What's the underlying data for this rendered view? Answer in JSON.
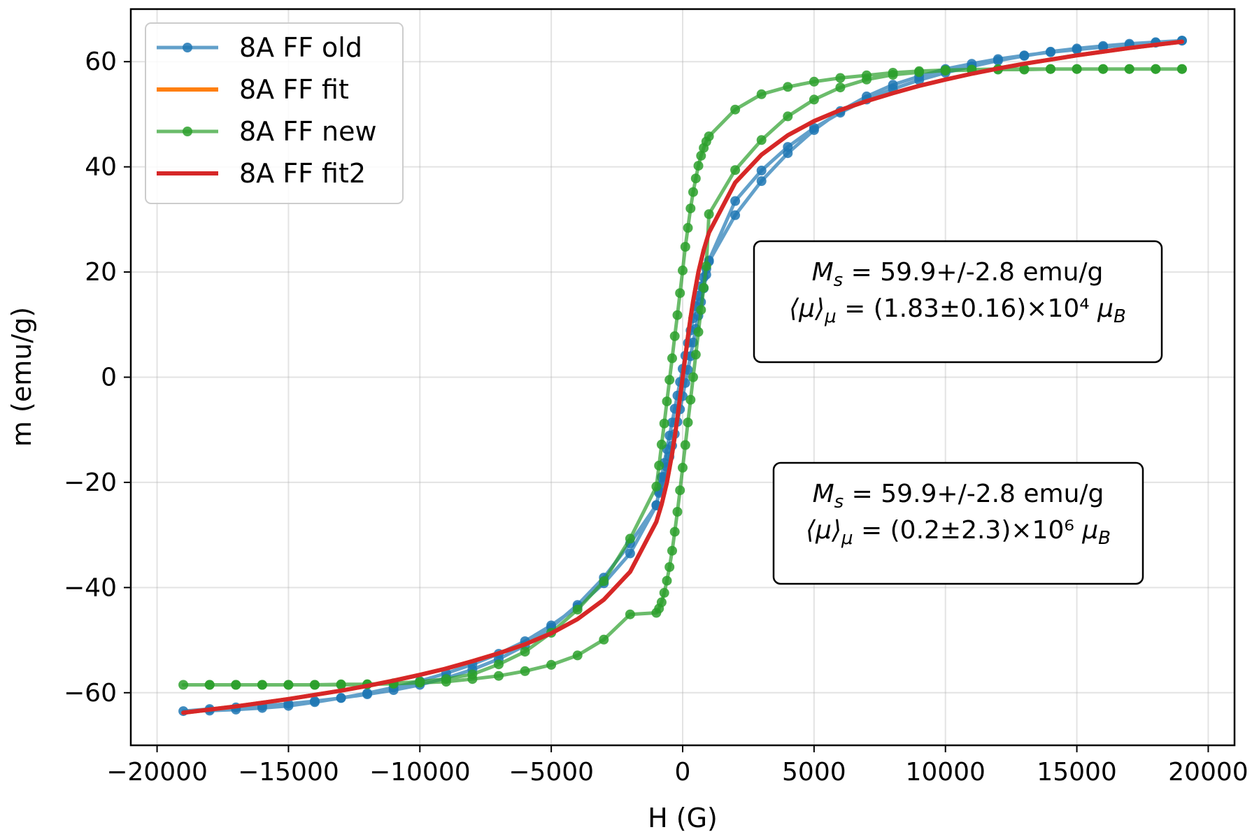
{
  "chart_data": {
    "type": "line",
    "xlabel": "H (G)",
    "ylabel": "m (emu/g)",
    "xlim": [
      -21000,
      21000
    ],
    "ylim": [
      -70,
      70
    ],
    "xticks": [
      -20000,
      -15000,
      -10000,
      -5000,
      0,
      5000,
      10000,
      15000,
      20000
    ],
    "xtick_labels": [
      "−20000",
      "−15000",
      "−10000",
      "−5000",
      "0",
      "5000",
      "10000",
      "15000",
      "20000"
    ],
    "yticks": [
      -60,
      -40,
      -20,
      0,
      20,
      40,
      60
    ],
    "ytick_labels": [
      "−60",
      "−40",
      "−20",
      "0",
      "20",
      "40",
      "60"
    ],
    "grid": true,
    "legend_position": "top-left",
    "series": [
      {
        "name": "8A FF old",
        "color": "#1f77b4",
        "markers": true,
        "x": [
          19000,
          18000,
          17000,
          16000,
          15000,
          14000,
          13000,
          12000,
          11000,
          10000,
          9000,
          8000,
          7000,
          6000,
          5000,
          4000,
          3000,
          2000,
          1000,
          900,
          800,
          700,
          600,
          500,
          400,
          300,
          200,
          100,
          0,
          -100,
          -200,
          -300,
          -400,
          -500,
          -600,
          -700,
          -800,
          -900,
          -1000,
          -2000,
          -3000,
          -4000,
          -5000,
          -6000,
          -7000,
          -8000,
          -9000,
          -10000,
          -11000,
          -12000,
          -13000,
          -14000,
          -15000,
          -16000,
          -17000,
          -18000,
          -19000,
          -18000,
          -17000,
          -16000,
          -15000,
          -14000,
          -13000,
          -12000,
          -11000,
          -10000,
          -9000,
          -8000,
          -7000,
          -6000,
          -5000,
          -4000,
          -3000,
          -2000,
          -1000,
          -900,
          -800,
          -700,
          -600,
          -500,
          -400,
          -300,
          -200,
          -100,
          0,
          100,
          200,
          300,
          400,
          500,
          600,
          700,
          800,
          900,
          1000,
          2000,
          3000,
          4000,
          5000,
          6000,
          7000,
          8000,
          9000,
          10000,
          11000,
          12000,
          13000,
          14000,
          15000,
          16000,
          17000,
          18000,
          19000
        ],
        "y": [
          64.0,
          63.6,
          63.2,
          62.8,
          62.3,
          61.8,
          61.2,
          60.5,
          59.6,
          58.6,
          57.2,
          55.6,
          53.4,
          50.6,
          47.0,
          42.6,
          37.3,
          30.8,
          22.0,
          20.6,
          19.0,
          17.3,
          15.5,
          13.5,
          11.2,
          8.9,
          6.5,
          4.1,
          1.6,
          -0.9,
          -3.5,
          -6.0,
          -8.6,
          -11.1,
          -13.7,
          -16.3,
          -19.0,
          -21.7,
          -24.4,
          -33.5,
          -39.2,
          -43.7,
          -47.2,
          -50.2,
          -52.6,
          -54.6,
          -56.3,
          -57.8,
          -59.0,
          -60.1,
          -61.0,
          -61.8,
          -62.5,
          -62.9,
          -63.2,
          -63.4,
          -63.5,
          -63.1,
          -62.8,
          -62.5,
          -62.1,
          -61.6,
          -61.0,
          -60.3,
          -59.5,
          -58.5,
          -57.2,
          -55.6,
          -53.6,
          -51.0,
          -47.6,
          -43.3,
          -38.1,
          -31.6,
          -24.3,
          -22.0,
          -20.5,
          -18.9,
          -17.1,
          -15.1,
          -13.0,
          -10.8,
          -8.5,
          -6.1,
          -3.6,
          -1.1,
          1.4,
          4.0,
          6.6,
          9.2,
          11.7,
          14.3,
          16.9,
          19.5,
          22.2,
          33.5,
          39.3,
          43.8,
          47.4,
          50.3,
          52.8,
          54.8,
          56.5,
          57.9,
          59.1,
          60.2,
          61.1,
          61.9,
          62.5,
          63.0,
          63.4,
          63.7,
          64.0
        ]
      },
      {
        "name": "8A FF fit",
        "color": "#ff7f0e",
        "markers": false,
        "x": [
          -19000,
          -18000,
          -17000,
          -16000,
          -15000,
          -14000,
          -13000,
          -12000,
          -11000,
          -10000,
          -9000,
          -8000,
          -7000,
          -6000,
          -5000,
          -4000,
          -3000,
          -2000,
          -1000,
          -800,
          -600,
          -400,
          -300,
          -200,
          -100,
          0,
          100,
          200,
          300,
          400,
          600,
          800,
          1000,
          2000,
          3000,
          4000,
          5000,
          6000,
          7000,
          8000,
          9000,
          10000,
          11000,
          12000,
          13000,
          14000,
          15000,
          16000,
          17000,
          18000,
          19000
        ],
        "y": [
          -63.8,
          -63.2,
          -62.6,
          -61.9,
          -61.2,
          -60.4,
          -59.6,
          -58.7,
          -57.7,
          -56.6,
          -55.4,
          -54.0,
          -52.5,
          -50.8,
          -48.7,
          -46.0,
          -42.3,
          -37.0,
          -27.5,
          -24.2,
          -20.0,
          -14.5,
          -11.3,
          -7.7,
          -3.9,
          0.0,
          3.9,
          7.7,
          11.3,
          14.5,
          20.0,
          24.2,
          27.5,
          37.0,
          42.3,
          46.0,
          48.7,
          50.8,
          52.5,
          54.0,
          55.4,
          56.6,
          57.7,
          58.7,
          59.6,
          60.4,
          61.2,
          61.9,
          62.6,
          63.2,
          63.8
        ]
      },
      {
        "name": "8A FF new",
        "color": "#2ca02c",
        "markers": true,
        "x": [
          19000,
          18000,
          17000,
          16000,
          15000,
          14000,
          13000,
          12000,
          11000,
          10000,
          9000,
          8000,
          7000,
          6000,
          5000,
          4000,
          3000,
          2000,
          1000,
          900,
          800,
          700,
          600,
          500,
          400,
          300,
          200,
          100,
          0,
          -100,
          -200,
          -300,
          -400,
          -500,
          -600,
          -700,
          -800,
          -900,
          -1000,
          -2000,
          -3000,
          -4000,
          -5000,
          -6000,
          -7000,
          -8000,
          -9000,
          -10000,
          -11000,
          -12000,
          -13000,
          -14000,
          -15000,
          -16000,
          -17000,
          -18000,
          -19000,
          -18000,
          -17000,
          -16000,
          -15000,
          -14000,
          -13000,
          -12000,
          -11000,
          -10000,
          -9000,
          -8000,
          -7000,
          -6000,
          -5000,
          -4000,
          -3000,
          -2000,
          -1000,
          -900,
          -800,
          -700,
          -600,
          -500,
          -400,
          -300,
          -200,
          -100,
          0,
          100,
          200,
          300,
          400,
          500,
          600,
          700,
          800,
          900,
          1000,
          2000,
          3000,
          4000,
          5000,
          6000,
          7000,
          8000,
          9000,
          10000,
          11000,
          12000,
          13000,
          14000,
          15000,
          16000,
          17000,
          18000,
          19000
        ],
        "y": [
          58.6,
          58.6,
          58.6,
          58.6,
          58.6,
          58.6,
          58.6,
          58.6,
          58.5,
          58.4,
          58.2,
          57.9,
          57.4,
          56.9,
          56.2,
          55.2,
          53.8,
          50.9,
          45.8,
          44.8,
          43.6,
          42.1,
          40.2,
          37.8,
          35.2,
          32.1,
          28.4,
          24.8,
          20.3,
          16.0,
          11.8,
          7.8,
          3.6,
          -0.5,
          -4.6,
          -8.8,
          -12.8,
          -16.8,
          -20.8,
          -30.7,
          -38.8,
          -44.2,
          -48.6,
          -52.2,
          -54.6,
          -56.5,
          -57.4,
          -57.9,
          -58.2,
          -58.4,
          -58.4,
          -58.5,
          -58.5,
          -58.5,
          -58.5,
          -58.5,
          -58.5,
          -58.5,
          -58.5,
          -58.5,
          -58.5,
          -58.5,
          -58.5,
          -58.4,
          -58.3,
          -58.1,
          -57.9,
          -57.4,
          -56.8,
          -55.9,
          -54.7,
          -52.9,
          -49.9,
          -45.1,
          -44.8,
          -44.0,
          -42.8,
          -41.0,
          -38.7,
          -36.1,
          -33.0,
          -29.4,
          -25.6,
          -21.5,
          -17.2,
          -12.9,
          -8.6,
          -4.3,
          0.0,
          4.3,
          8.6,
          12.8,
          17.0,
          21.1,
          31.0,
          39.4,
          45.1,
          49.6,
          52.8,
          55.1,
          56.6,
          57.5,
          58.0,
          58.3,
          58.4,
          58.5,
          58.5,
          58.6,
          58.6,
          58.6,
          58.6,
          58.6,
          58.6
        ]
      },
      {
        "name": "8A FF fit2",
        "color": "#d62728",
        "markers": false,
        "x": [
          -19000,
          -18000,
          -17000,
          -16000,
          -15000,
          -14000,
          -13000,
          -12000,
          -11000,
          -10000,
          -9000,
          -8000,
          -7000,
          -6000,
          -5000,
          -4000,
          -3000,
          -2000,
          -1000,
          -800,
          -600,
          -400,
          -300,
          -200,
          -100,
          0,
          100,
          200,
          300,
          400,
          600,
          800,
          1000,
          2000,
          3000,
          4000,
          5000,
          6000,
          7000,
          8000,
          9000,
          10000,
          11000,
          12000,
          13000,
          14000,
          15000,
          16000,
          17000,
          18000,
          19000
        ],
        "y": [
          -63.8,
          -63.2,
          -62.6,
          -61.9,
          -61.2,
          -60.4,
          -59.6,
          -58.7,
          -57.7,
          -56.6,
          -55.4,
          -54.0,
          -52.5,
          -50.8,
          -48.7,
          -46.0,
          -42.3,
          -37.0,
          -27.5,
          -24.2,
          -20.0,
          -14.5,
          -11.3,
          -7.7,
          -3.9,
          0.0,
          3.9,
          7.7,
          11.3,
          14.5,
          20.0,
          24.2,
          27.5,
          37.0,
          42.3,
          46.0,
          48.7,
          50.8,
          52.5,
          54.0,
          55.4,
          56.6,
          57.7,
          58.7,
          59.6,
          60.4,
          61.2,
          61.9,
          62.6,
          63.2,
          63.8
        ]
      }
    ],
    "annotations": [
      {
        "line1": {
          "symbol": "M",
          "subscript": "s",
          "rest": " = 59.9+/-2.8 emu/g"
        },
        "line2": {
          "prefix": "⟨μ⟩",
          "subscript": "μ",
          "rest": " = (1.83±0.16)×10⁴ ",
          "unit": "μ",
          "unit_subscript": "B"
        }
      },
      {
        "line1": {
          "symbol": "M",
          "subscript": "s",
          "rest": " = 59.9+/-2.8 emu/g"
        },
        "line2": {
          "prefix": "⟨μ⟩",
          "subscript": "μ",
          "rest": " = (0.2±2.3)×10⁶ ",
          "unit": "μ",
          "unit_subscript": "B"
        }
      }
    ]
  }
}
